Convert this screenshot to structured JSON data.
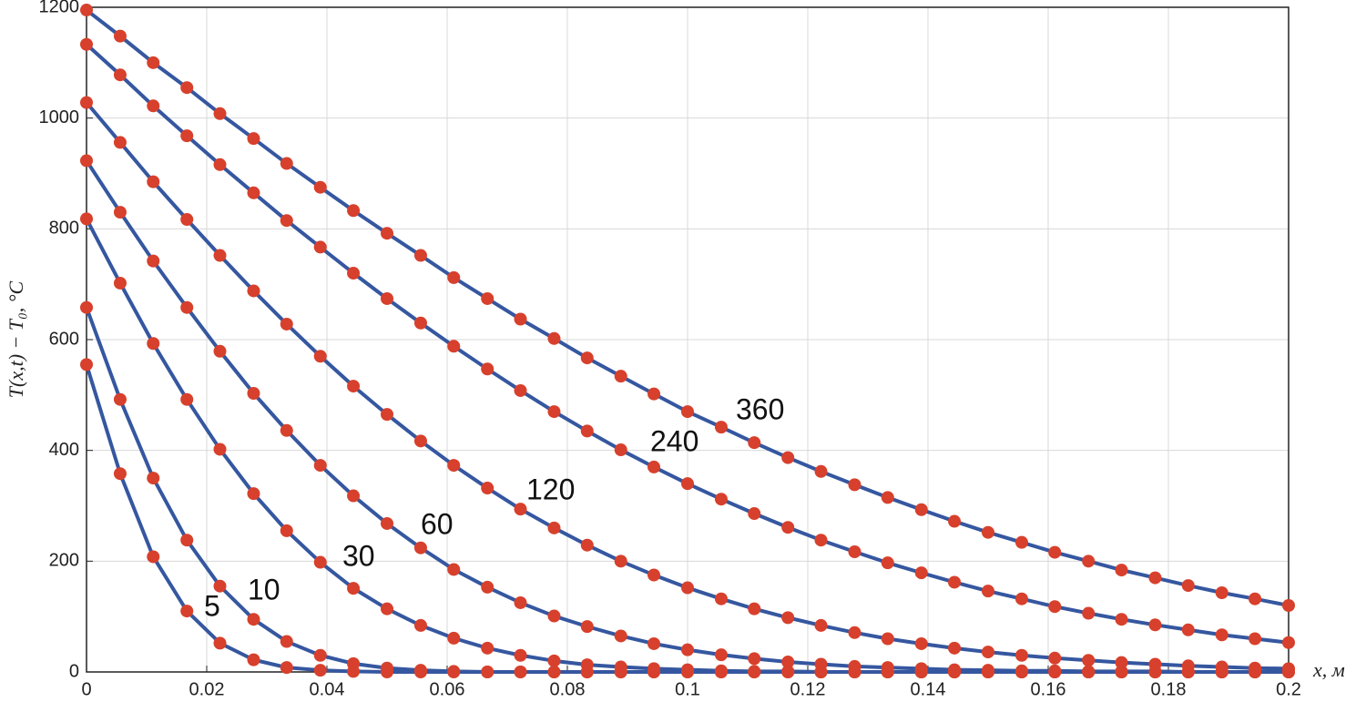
{
  "chart_data": {
    "type": "line",
    "xlabel": "x, м",
    "ylabel": "T(x,t) − T₀, °C",
    "xlim": [
      0,
      0.2
    ],
    "ylim": [
      0,
      1200
    ],
    "xticks": [
      0,
      0.02,
      0.04,
      0.06,
      0.08,
      0.1,
      0.12,
      0.14,
      0.16,
      0.18,
      0.2
    ],
    "yticks": [
      0,
      200,
      400,
      600,
      800,
      1000,
      1200
    ],
    "grid": true,
    "line_color": "#3557a0",
    "marker_color": "#d7402c",
    "x": [
      0,
      0.0056,
      0.0111,
      0.0167,
      0.0222,
      0.0278,
      0.0333,
      0.0389,
      0.0444,
      0.05,
      0.0556,
      0.0611,
      0.0667,
      0.0722,
      0.0778,
      0.0833,
      0.0889,
      0.0944,
      0.1,
      0.1056,
      0.1111,
      0.1167,
      0.1222,
      0.1278,
      0.1333,
      0.1389,
      0.1444,
      0.15,
      0.1556,
      0.1611,
      0.1667,
      0.1722,
      0.1778,
      0.1833,
      0.1889,
      0.1944,
      0.2
    ],
    "series": [
      {
        "name": "360",
        "values": [
          1195,
          1148,
          1100,
          1055,
          1008,
          963,
          918,
          875,
          833,
          792,
          752,
          712,
          674,
          637,
          602,
          567,
          534,
          502,
          470,
          442,
          414,
          387,
          362,
          338,
          315,
          293,
          272,
          252,
          234,
          216,
          200,
          184,
          170,
          156,
          143,
          132,
          120
        ]
      },
      {
        "name": "240",
        "values": [
          1133,
          1078,
          1022,
          968,
          916,
          865,
          815,
          767,
          720,
          674,
          630,
          588,
          547,
          508,
          470,
          435,
          401,
          370,
          340,
          312,
          286,
          261,
          238,
          217,
          197,
          179,
          162,
          146,
          132,
          118,
          106,
          95,
          85,
          76,
          67,
          60,
          53
        ]
      },
      {
        "name": "120",
        "values": [
          1028,
          956,
          885,
          817,
          752,
          688,
          628,
          570,
          516,
          465,
          417,
          373,
          332,
          294,
          260,
          229,
          200,
          175,
          152,
          132,
          114,
          98,
          84,
          71,
          60,
          51,
          43,
          36,
          30,
          25,
          21,
          17,
          14,
          11,
          9,
          7,
          6
        ]
      },
      {
        "name": "60",
        "values": [
          923,
          830,
          742,
          658,
          579,
          503,
          436,
          373,
          318,
          268,
          224,
          185,
          153,
          125,
          101,
          82,
          65,
          51,
          40,
          31,
          24,
          18,
          14,
          10,
          8,
          6,
          4,
          3,
          2,
          2,
          1,
          1,
          1,
          0,
          0,
          0,
          0
        ]
      },
      {
        "name": "30",
        "values": [
          818,
          702,
          593,
          492,
          402,
          322,
          255,
          198,
          151,
          114,
          84,
          61,
          43,
          30,
          20,
          13,
          9,
          6,
          4,
          2,
          1,
          1,
          0,
          0,
          0,
          0,
          0,
          0,
          0,
          0,
          0,
          0,
          0,
          0,
          0,
          0,
          0
        ]
      },
      {
        "name": "10",
        "values": [
          658,
          492,
          350,
          238,
          155,
          95,
          55,
          30,
          15,
          7,
          3,
          1,
          0,
          0,
          0,
          0,
          0,
          0,
          0,
          0,
          0,
          0,
          0,
          0,
          0,
          0,
          0,
          0,
          0,
          0,
          0,
          0,
          0,
          0,
          0,
          0,
          0
        ]
      },
      {
        "name": "5",
        "values": [
          555,
          358,
          208,
          110,
          52,
          22,
          8,
          3,
          1,
          0,
          0,
          0,
          0,
          0,
          0,
          0,
          0,
          0,
          0,
          0,
          0,
          0,
          0,
          0,
          0,
          0,
          0,
          0,
          0,
          0,
          0,
          0,
          0,
          0,
          0,
          0,
          0
        ]
      }
    ]
  }
}
